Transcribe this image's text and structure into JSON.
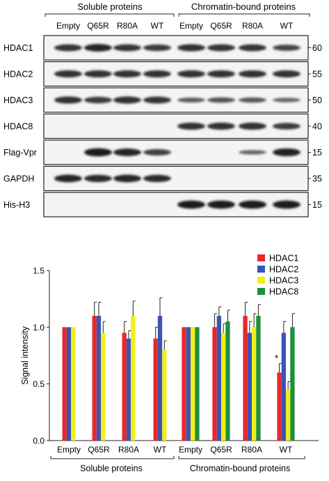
{
  "blot": {
    "group_labels": [
      "Soluble proteins",
      "Chromatin-bound proteins"
    ],
    "lane_labels": [
      "Empty",
      "Q65R",
      "R80A",
      "WT",
      "Empty",
      "Q65R",
      "R80A",
      "WT"
    ],
    "rows": [
      {
        "label": "HDAC1",
        "mw": "60",
        "intensities": [
          0.7,
          0.85,
          0.7,
          0.65,
          0.75,
          0.7,
          0.7,
          0.55
        ]
      },
      {
        "label": "HDAC2",
        "mw": "55",
        "intensities": [
          0.75,
          0.75,
          0.75,
          0.75,
          0.75,
          0.75,
          0.75,
          0.75
        ]
      },
      {
        "label": "HDAC3",
        "mw": "50",
        "intensities": [
          0.75,
          0.65,
          0.75,
          0.7,
          0.3,
          0.4,
          0.35,
          0.2
        ]
      },
      {
        "label": "HDAC8",
        "mw": "40",
        "intensities": [
          0,
          0,
          0,
          0,
          0.75,
          0.75,
          0.75,
          0.65
        ]
      },
      {
        "label": "Flag-Vpr",
        "mw": "15",
        "intensities": [
          0,
          0.95,
          0.85,
          0.6,
          0,
          0,
          0.2,
          0.9
        ]
      },
      {
        "label": "GAPDH",
        "mw": "35",
        "intensities": [
          0.85,
          0.8,
          0.85,
          0.8,
          0,
          0,
          0,
          0
        ]
      },
      {
        "label": "His-H3",
        "mw": "15",
        "intensities": [
          0,
          0,
          0,
          0,
          0.95,
          0.95,
          0.95,
          0.95
        ]
      }
    ]
  },
  "chart_data": {
    "type": "bar",
    "ylabel": "Signal intensity",
    "xlabel": "",
    "ylim": [
      0,
      1.5
    ],
    "yticks": [
      "0.0",
      "0.5",
      "1.0",
      "1.5"
    ],
    "categories": [
      "Empty",
      "Q65R",
      "R80A",
      "WT",
      "Empty",
      "Q65R",
      "R80A",
      "WT"
    ],
    "group_labels": [
      "Soluble proteins",
      "Chromatin-bound proteins"
    ],
    "legend_position": "top-right",
    "colors": {
      "HDAC1": "#e8282b",
      "HDAC2": "#3a55b4",
      "HDAC3": "#f2ee1a",
      "HDAC8": "#1f8f3c"
    },
    "series": [
      {
        "name": "HDAC1",
        "values": [
          1.0,
          1.1,
          0.95,
          0.9,
          1.0,
          1.0,
          1.1,
          0.6
        ],
        "errors": [
          0,
          0.12,
          0.1,
          0.1,
          0,
          0.12,
          0.12,
          0.08
        ]
      },
      {
        "name": "HDAC2",
        "values": [
          1.0,
          1.1,
          0.9,
          1.1,
          1.0,
          1.1,
          0.95,
          0.95
        ],
        "errors": [
          0,
          0.12,
          0.07,
          0.16,
          0,
          0.08,
          0.1,
          0.1
        ]
      },
      {
        "name": "HDAC3",
        "values": [
          1.0,
          0.95,
          1.1,
          0.8,
          1.0,
          0.95,
          1.0,
          0.45
        ],
        "errors": [
          0,
          0.1,
          0.13,
          0.08,
          0,
          0.08,
          0.12,
          0.07
        ]
      },
      {
        "name": "HDAC8",
        "values": [
          null,
          null,
          null,
          null,
          1.0,
          1.05,
          1.1,
          1.0
        ],
        "errors": [
          0,
          0,
          0,
          0,
          0,
          0.1,
          0.1,
          0.12
        ]
      }
    ],
    "annotations": [
      {
        "text": "*",
        "category_index": 7,
        "series": "HDAC1"
      },
      {
        "text": "*",
        "category_index": 7,
        "series": "HDAC3"
      }
    ]
  }
}
